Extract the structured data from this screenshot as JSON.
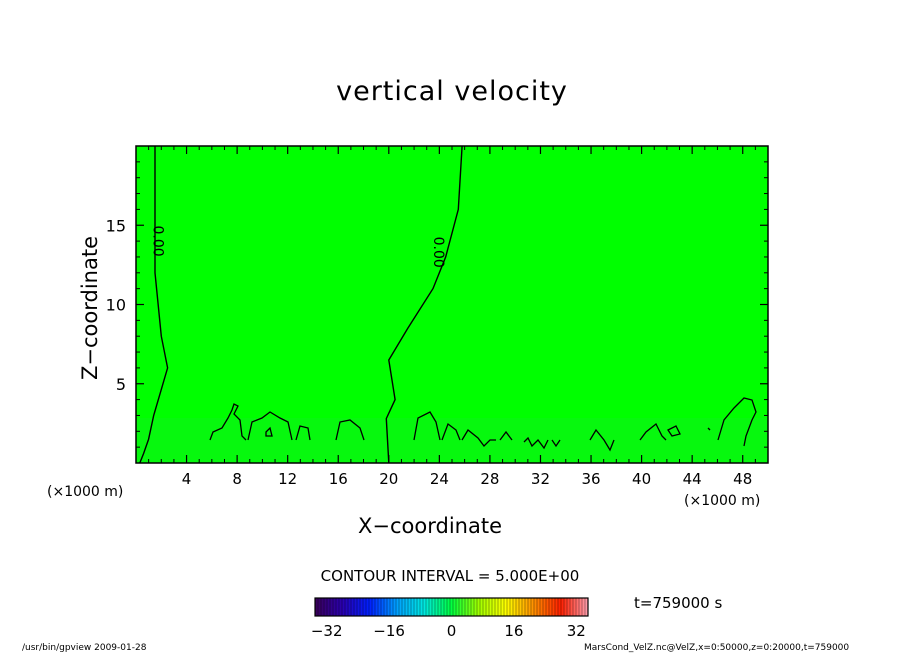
{
  "chart_data": {
    "type": "heatmap",
    "title": "vertical velocity",
    "xlabel": "X−coordinate",
    "ylabel": "Z−coordinate",
    "x_unit": "(×1000 m)",
    "z_unit": "(×1000 m)",
    "xlim": [
      0,
      50
    ],
    "ylim": [
      0,
      20
    ],
    "x_ticks": [
      4,
      8,
      12,
      16,
      20,
      24,
      28,
      32,
      36,
      40,
      44,
      48
    ],
    "y_ticks": [
      5,
      10,
      15
    ],
    "contour_labels": [
      {
        "text": "0.00",
        "x": 1.7,
        "z": 14.0
      },
      {
        "text": "0.00",
        "x": 23.9,
        "z": 13.3
      }
    ],
    "zero_contours": [
      [
        [
          1.5,
          20
        ],
        [
          1.5,
          12
        ],
        [
          2.0,
          8
        ],
        [
          2.5,
          6
        ],
        [
          1.4,
          3
        ],
        [
          1.0,
          1.5
        ],
        [
          0.6,
          0.6
        ],
        [
          0.3,
          0
        ]
      ],
      [
        [
          25.8,
          20
        ],
        [
          25.5,
          16
        ],
        [
          24.5,
          13
        ],
        [
          23.5,
          11
        ],
        [
          21.5,
          8.5
        ],
        [
          20.0,
          6.5
        ],
        [
          20.5,
          4.0
        ],
        [
          19.8,
          2.8
        ],
        [
          20.0,
          0
        ]
      ]
    ],
    "field_value_approx": 0,
    "contour_interval": "CONTOUR INTERVAL = 5.000E+00",
    "colorbar": {
      "ticks": [
        -32,
        -16,
        0,
        16,
        32
      ],
      "tick_labels": [
        "−32",
        "−16",
        "0",
        "16",
        "32"
      ],
      "range": [
        -35,
        35
      ],
      "colors": [
        "#3a0058",
        "#2a00b0",
        "#0020ff",
        "#00a0ff",
        "#00e8e0",
        "#00ff40",
        "#a0ff00",
        "#ffff00",
        "#ff9000",
        "#ff2000",
        "#ffa0b0"
      ]
    },
    "time_label": "t=759000 s",
    "footer_left": "/usr/bin/gpview   2009-01-28",
    "footer_right": "MarsCond_VelZ.nc@VelZ,x=0:50000,z=0:20000,t=759000",
    "field_color": "#00ff00"
  }
}
